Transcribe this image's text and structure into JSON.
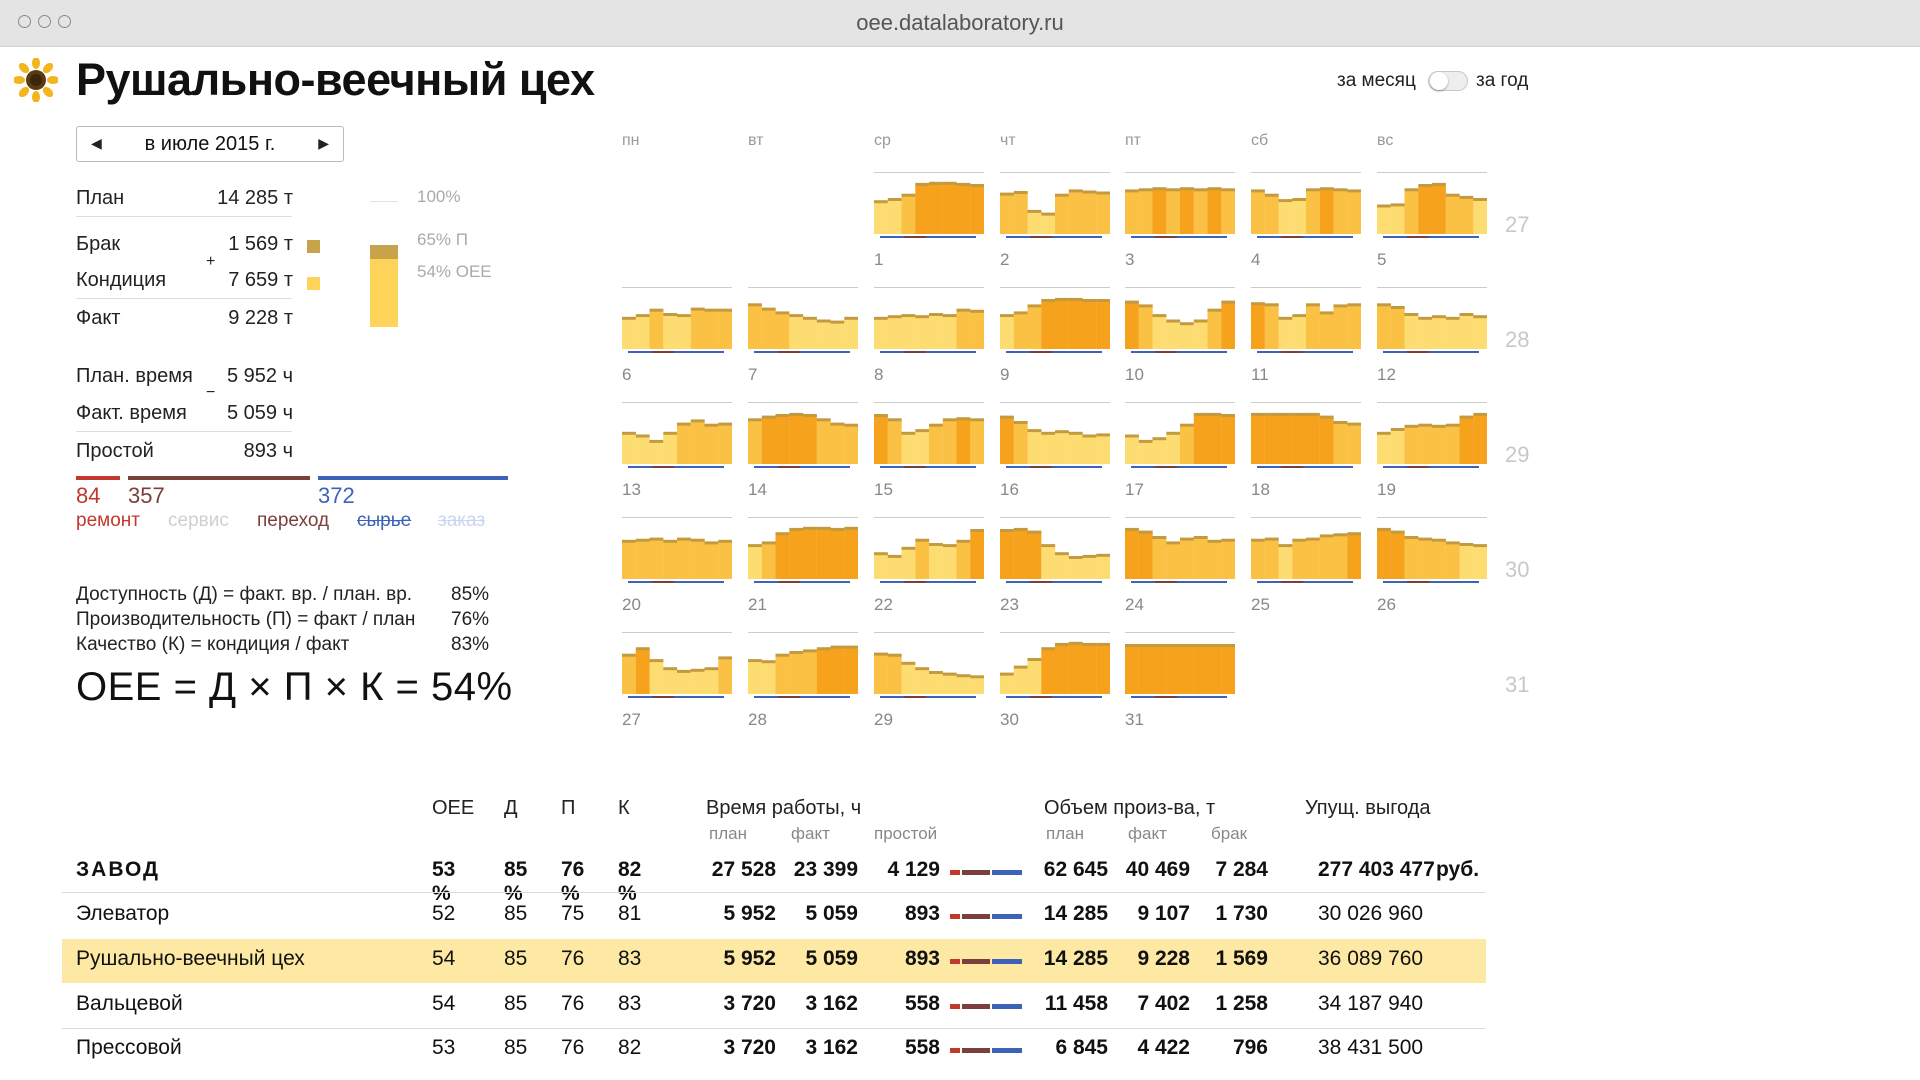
{
  "browser": {
    "url": "oee.datalaboratory.ru"
  },
  "header": {
    "title": "Рушально-веечный цех",
    "logo_icon": "sunflower-icon"
  },
  "period_toggle": {
    "month_label": "за месяц",
    "year_label": "за год",
    "selected": "month"
  },
  "month_nav": {
    "prev_icon": "triangle-left-icon",
    "label": "в июле 2015 г.",
    "next_icon": "triangle-right-icon"
  },
  "summary": {
    "plan_label": "План",
    "plan_value": "14 285 т",
    "defect_label": "Брак",
    "defect_value": "1 569 т",
    "condition_label": "Кондиция",
    "condition_value": "7 659 т",
    "plus_sign": "+",
    "fact_label": "Факт",
    "fact_value": "9 228 т",
    "plan_time_label": "План. время",
    "plan_time_value": "5 952 ч",
    "fact_time_label": "Факт. время",
    "fact_time_value": "5 059 ч",
    "minus_sign": "−",
    "downtime_label": "Простой",
    "downtime_value": "893 ч",
    "bar_labels": {
      "full": "100%",
      "perf": "65% П",
      "oee": "54% OEE"
    },
    "bar_levels": {
      "perf": 0.65,
      "oee": 0.54
    }
  },
  "downtime_causes": [
    {
      "value": "84",
      "label": "ремонт",
      "color": "#c0392b",
      "share": 0.094,
      "struck": false,
      "muted": false
    },
    {
      "value": "",
      "label": "сервис",
      "color": "#d0d0d0",
      "share": 0,
      "struck": false,
      "muted": true
    },
    {
      "value": "357",
      "label": "переход",
      "color": "#7b3f3a",
      "share": 0.4,
      "struck": false,
      "muted": false
    },
    {
      "value": "372",
      "label": "сырье",
      "color": "#3d63b8",
      "share": 0.417,
      "struck": true,
      "muted": false
    },
    {
      "value": "",
      "label": "заказ",
      "color": "#c9d4ee",
      "share": 0,
      "struck": true,
      "muted": true
    }
  ],
  "formulas": [
    {
      "text": "Доступность (Д) = факт. вр. / план. вр.",
      "value": "85%"
    },
    {
      "text": "Производительность (П) = факт / план",
      "value": "76%"
    },
    {
      "text": "Качество (К) = кондиция / факт",
      "value": "83%"
    }
  ],
  "oee_formula": "OEE = Д × П × К = 54%",
  "calendar": {
    "weekdays": [
      "пн",
      "вт",
      "ср",
      "чт",
      "пт",
      "сб",
      "вс"
    ],
    "week_numbers": [
      "27",
      "28",
      "29",
      "30",
      "31"
    ],
    "days": [
      {
        "n": "1",
        "week": 0,
        "dow": 2,
        "f": [
          0.58,
          0.62,
          0.7,
          0.9,
          0.92,
          0.92,
          0.9,
          0.88
        ]
      },
      {
        "n": "2",
        "week": 0,
        "dow": 3,
        "f": [
          0.72,
          0.75,
          0.4,
          0.35,
          0.7,
          0.78,
          0.76,
          0.74
        ]
      },
      {
        "n": "3",
        "week": 0,
        "dow": 4,
        "f": [
          0.78,
          0.8,
          0.82,
          0.8,
          0.82,
          0.8,
          0.82,
          0.8
        ]
      },
      {
        "n": "4",
        "week": 0,
        "dow": 5,
        "f": [
          0.78,
          0.7,
          0.6,
          0.62,
          0.8,
          0.82,
          0.8,
          0.78
        ]
      },
      {
        "n": "5",
        "week": 0,
        "dow": 6,
        "f": [
          0.5,
          0.52,
          0.8,
          0.88,
          0.9,
          0.7,
          0.66,
          0.62
        ]
      },
      {
        "n": "6",
        "week": 1,
        "dow": 0,
        "f": [
          0.55,
          0.6,
          0.7,
          0.62,
          0.6,
          0.72,
          0.7,
          0.7
        ]
      },
      {
        "n": "7",
        "week": 1,
        "dow": 1,
        "f": [
          0.8,
          0.72,
          0.65,
          0.6,
          0.55,
          0.5,
          0.48,
          0.55
        ]
      },
      {
        "n": "8",
        "week": 1,
        "dow": 2,
        "f": [
          0.55,
          0.58,
          0.6,
          0.58,
          0.62,
          0.6,
          0.7,
          0.68
        ]
      },
      {
        "n": "9",
        "week": 1,
        "dow": 3,
        "f": [
          0.6,
          0.65,
          0.78,
          0.88,
          0.9,
          0.9,
          0.88,
          0.88
        ]
      },
      {
        "n": "10",
        "week": 1,
        "dow": 4,
        "f": [
          0.85,
          0.78,
          0.6,
          0.5,
          0.45,
          0.5,
          0.7,
          0.85
        ]
      },
      {
        "n": "11",
        "week": 1,
        "dow": 5,
        "f": [
          0.82,
          0.8,
          0.55,
          0.6,
          0.8,
          0.65,
          0.78,
          0.8
        ]
      },
      {
        "n": "12",
        "week": 1,
        "dow": 6,
        "f": [
          0.8,
          0.75,
          0.62,
          0.55,
          0.58,
          0.55,
          0.62,
          0.58
        ]
      },
      {
        "n": "13",
        "week": 2,
        "dow": 0,
        "f": [
          0.55,
          0.5,
          0.4,
          0.55,
          0.72,
          0.78,
          0.7,
          0.72
        ]
      },
      {
        "n": "14",
        "week": 2,
        "dow": 1,
        "f": [
          0.8,
          0.85,
          0.88,
          0.9,
          0.88,
          0.8,
          0.72,
          0.7
        ]
      },
      {
        "n": "15",
        "week": 2,
        "dow": 2,
        "f": [
          0.88,
          0.8,
          0.55,
          0.6,
          0.7,
          0.8,
          0.82,
          0.8
        ]
      },
      {
        "n": "16",
        "week": 2,
        "dow": 3,
        "f": [
          0.85,
          0.75,
          0.6,
          0.55,
          0.58,
          0.55,
          0.5,
          0.52
        ]
      },
      {
        "n": "17",
        "week": 2,
        "dow": 4,
        "f": [
          0.5,
          0.4,
          0.45,
          0.55,
          0.7,
          0.9,
          0.9,
          0.88
        ]
      },
      {
        "n": "18",
        "week": 2,
        "dow": 5,
        "f": [
          0.9,
          0.9,
          0.9,
          0.9,
          0.9,
          0.85,
          0.75,
          0.72
        ]
      },
      {
        "n": "19",
        "week": 2,
        "dow": 6,
        "f": [
          0.55,
          0.62,
          0.68,
          0.7,
          0.68,
          0.7,
          0.85,
          0.9
        ]
      },
      {
        "n": "20",
        "week": 3,
        "dow": 0,
        "f": [
          0.68,
          0.7,
          0.72,
          0.68,
          0.72,
          0.7,
          0.65,
          0.68
        ]
      },
      {
        "n": "21",
        "week": 3,
        "dow": 1,
        "f": [
          0.6,
          0.65,
          0.82,
          0.9,
          0.92,
          0.92,
          0.9,
          0.92
        ]
      },
      {
        "n": "22",
        "week": 3,
        "dow": 2,
        "f": [
          0.45,
          0.4,
          0.55,
          0.7,
          0.62,
          0.6,
          0.68,
          0.88
        ]
      },
      {
        "n": "23",
        "week": 3,
        "dow": 3,
        "f": [
          0.88,
          0.9,
          0.85,
          0.6,
          0.45,
          0.38,
          0.4,
          0.42
        ]
      },
      {
        "n": "24",
        "week": 3,
        "dow": 4,
        "f": [
          0.9,
          0.85,
          0.75,
          0.65,
          0.72,
          0.75,
          0.68,
          0.7
        ]
      },
      {
        "n": "25",
        "week": 3,
        "dow": 5,
        "f": [
          0.7,
          0.72,
          0.6,
          0.7,
          0.72,
          0.78,
          0.8,
          0.82
        ]
      },
      {
        "n": "26",
        "week": 3,
        "dow": 6,
        "f": [
          0.9,
          0.85,
          0.75,
          0.72,
          0.7,
          0.65,
          0.62,
          0.6
        ]
      },
      {
        "n": "27",
        "week": 4,
        "dow": 0,
        "f": [
          0.7,
          0.82,
          0.6,
          0.45,
          0.4,
          0.42,
          0.45,
          0.65
        ]
      },
      {
        "n": "28",
        "week": 4,
        "dow": 1,
        "f": [
          0.6,
          0.58,
          0.7,
          0.75,
          0.78,
          0.82,
          0.85,
          0.85
        ]
      },
      {
        "n": "29",
        "week": 4,
        "dow": 2,
        "f": [
          0.72,
          0.7,
          0.55,
          0.45,
          0.38,
          0.35,
          0.32,
          0.3
        ]
      },
      {
        "n": "30",
        "week": 4,
        "dow": 3,
        "f": [
          0.35,
          0.48,
          0.62,
          0.82,
          0.9,
          0.92,
          0.9,
          0.9
        ]
      },
      {
        "n": "31",
        "week": 4,
        "dow": 4,
        "f": [
          0.88,
          0.88,
          0.88,
          0.88,
          0.88,
          0.88,
          0.88,
          0.88
        ]
      }
    ],
    "colors": {
      "dark": "#f6a21d",
      "mid": "#fbc144",
      "light": "#fddc72",
      "cap": "#c49a3e",
      "downtime": "#3d63b8",
      "repair": "#7b3f3a"
    }
  },
  "table": {
    "headers": {
      "oee": "OEE",
      "d": "Д",
      "p": "П",
      "k": "К",
      "worktime": "Время работы, ч",
      "volume": "Объем произ-ва, т",
      "benefit": "Упущ. выгода"
    },
    "subheaders": {
      "plan": "план",
      "fact": "факт",
      "downtime": "простой",
      "vplan": "план",
      "vfact": "факт",
      "defect": "брак"
    },
    "total": {
      "name": "ЗАВОД",
      "oee": "53 %",
      "d": "85 %",
      "p": "76 %",
      "k": "82 %",
      "plan": "27 528",
      "fact": "23 399",
      "downtime": "4 129",
      "vplan": "62 645",
      "vfact": "40 469",
      "defect": "7 284",
      "benefit": "277 403 477",
      "currency": "руб."
    },
    "rows": [
      {
        "name": "Элеватор",
        "oee": "52",
        "d": "85",
        "p": "75",
        "k": "81",
        "plan": "5 952",
        "fact": "5 059",
        "downtime": "893",
        "vplan": "14 285",
        "vfact": "9 107",
        "defect": "1 730",
        "benefit": "30 026 960",
        "selected": false
      },
      {
        "name": "Рушально-веечный цех",
        "oee": "54",
        "d": "85",
        "p": "76",
        "k": "83",
        "plan": "5 952",
        "fact": "5 059",
        "downtime": "893",
        "vplan": "14 285",
        "vfact": "9 228",
        "defect": "1 569",
        "benefit": "36 089 760",
        "selected": true
      },
      {
        "name": "Вальцевой",
        "oee": "54",
        "d": "85",
        "p": "76",
        "k": "83",
        "plan": "3 720",
        "fact": "3 162",
        "downtime": "558",
        "vplan": "11 458",
        "vfact": "7 402",
        "defect": "1 258",
        "benefit": "34 187 940",
        "selected": false
      },
      {
        "name": "Прессовой",
        "oee": "53",
        "d": "85",
        "p": "76",
        "k": "82",
        "plan": "3 720",
        "fact": "3 162",
        "downtime": "558",
        "vplan": "6 845",
        "vfact": "4 422",
        "defect": "796",
        "benefit": "38 431 500",
        "selected": false
      }
    ]
  }
}
